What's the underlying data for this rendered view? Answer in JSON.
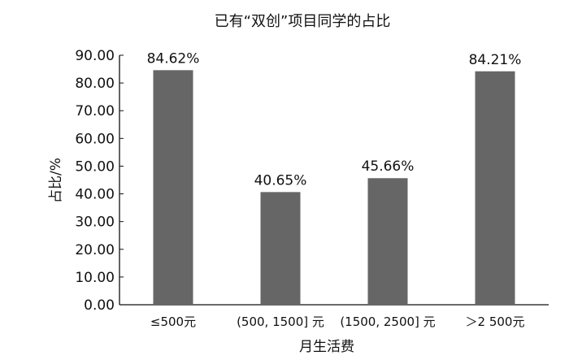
{
  "chart_data": {
    "type": "bar",
    "title": "已有“双创”项目同学的占比",
    "xlabel": "月生活费",
    "ylabel": "占比/%",
    "categories": [
      "≤500元",
      "(500, 1500] 元",
      "(1500, 2500] 元",
      "＞2 500元"
    ],
    "values": [
      84.62,
      40.65,
      45.66,
      84.21
    ],
    "data_labels": [
      "84.62%",
      "40.65%",
      "45.66%",
      "84.21%"
    ],
    "ylim": [
      0,
      90
    ],
    "yticks": [
      "0.00",
      "10.00",
      "20.00",
      "30.00",
      "40.00",
      "50.00",
      "60.00",
      "70.00",
      "80.00",
      "90.00"
    ],
    "grid": false,
    "legend": "none",
    "bar_color": "#666666"
  }
}
